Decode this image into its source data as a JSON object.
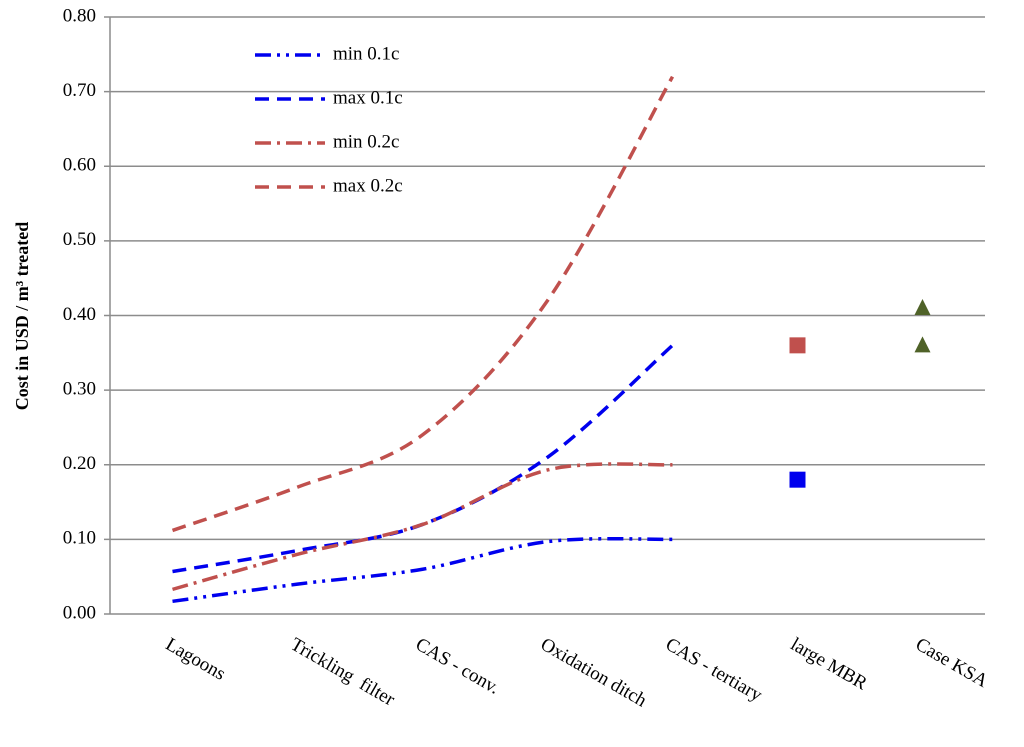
{
  "chart_data": {
    "type": "line",
    "y_label": "Cost in USD / m³ treated",
    "categories": [
      "Lagoons",
      "Trickling  filter",
      "CAS - conv.",
      "Oxidation ditch",
      "CAS - tertiary",
      "large MBR",
      "Case KSA"
    ],
    "series": [
      {
        "name": "min 0.1c",
        "color": "#0000ee",
        "dash": "dashdotdot",
        "values": [
          0.017,
          0.04,
          0.06,
          0.097,
          0.1,
          null,
          null
        ]
      },
      {
        "name": "max 0.1c",
        "color": "#0000ee",
        "dash": "dash",
        "values": [
          0.057,
          0.085,
          0.12,
          0.21,
          0.36,
          null,
          null
        ]
      },
      {
        "name": "min 0.2c",
        "color": "#c0504d",
        "dash": "dashdot",
        "values": [
          0.033,
          0.08,
          0.12,
          0.193,
          0.2,
          null,
          null
        ]
      },
      {
        "name": "max 0.2c",
        "color": "#c0504d",
        "dash": "dash",
        "values": [
          0.112,
          0.17,
          0.24,
          0.42,
          0.72,
          null,
          null
        ]
      }
    ],
    "markers": [
      {
        "color": "#c0504d",
        "shape": "square",
        "values": [
          null,
          null,
          null,
          null,
          null,
          0.36,
          null
        ]
      },
      {
        "color": "#0000ee",
        "shape": "square",
        "values": [
          null,
          null,
          null,
          null,
          null,
          0.18,
          null
        ]
      },
      {
        "color": "#4f6228",
        "shape": "triangle",
        "values": [
          null,
          null,
          null,
          null,
          null,
          null,
          0.41
        ]
      },
      {
        "color": "#4f6228",
        "shape": "triangle",
        "values": [
          null,
          null,
          null,
          null,
          null,
          null,
          0.36
        ]
      }
    ],
    "ylim": [
      0,
      0.8
    ],
    "yticks": [
      {
        "value": 0,
        "label": "0.00"
      },
      {
        "value": 0.1,
        "label": "0.10"
      },
      {
        "value": 0.2,
        "label": "0.20"
      },
      {
        "value": 0.3,
        "label": "0.30"
      },
      {
        "value": 0.4,
        "label": "0.40"
      },
      {
        "value": 0.5,
        "label": "0.50"
      },
      {
        "value": 0.6,
        "label": "0.60"
      },
      {
        "value": 0.7,
        "label": "0.70"
      },
      {
        "value": 0.8,
        "label": "0.80"
      }
    ],
    "grid": true,
    "legend": "upper left"
  }
}
